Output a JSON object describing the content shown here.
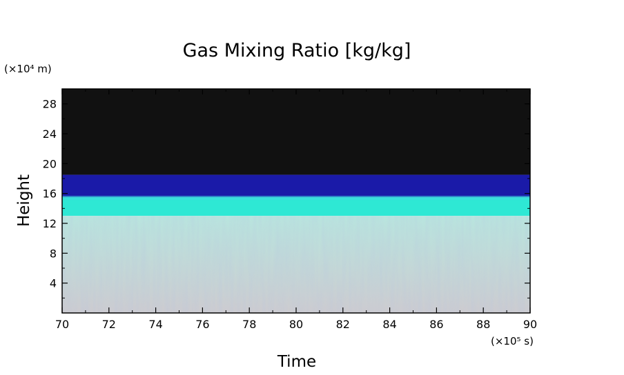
{
  "chart_data": {
    "type": "heatmap",
    "title": "Gas Mixing Ratio [kg/kg]",
    "xlabel": "Time",
    "ylabel": "Height",
    "x_unit": "(×10⁵ s)",
    "y_unit": "(×10⁴ m)",
    "xlim": [
      70,
      90
    ],
    "ylim": [
      0,
      30
    ],
    "xticks": [
      70,
      72,
      74,
      76,
      78,
      80,
      82,
      84,
      86,
      88,
      90
    ],
    "yticks": [
      4,
      8,
      12,
      16,
      20,
      24,
      28
    ],
    "bands": [
      {
        "from": 18.5,
        "to": 30,
        "color": "#111111"
      },
      {
        "from": 15.5,
        "to": 18.5,
        "color": "#1a1aa8"
      },
      {
        "from": 13.0,
        "to": 15.5,
        "color": "#2ee8d4"
      },
      {
        "from": 0,
        "to": 13.0,
        "color": "#c2ccd0"
      }
    ]
  }
}
